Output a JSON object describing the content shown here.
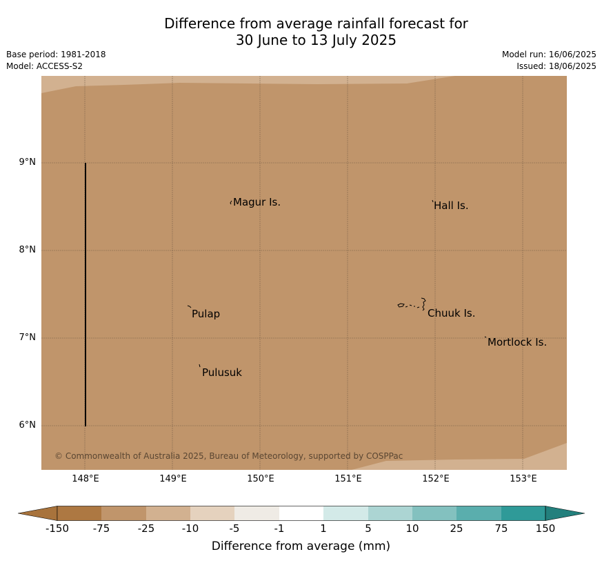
{
  "title_line1": "Difference from average rainfall forecast for",
  "title_line2": "30 June to 13 July 2025",
  "base_period": "Base period: 1981-2018",
  "model": "Model: ACCESS-S2",
  "model_run": "Model run: 16/06/2025",
  "issued": "Issued: 18/06/2025",
  "map": {
    "lon_labels": [
      "148°E",
      "149°E",
      "150°E",
      "151°E",
      "152°E",
      "153°E"
    ],
    "lat_labels": [
      "9°N",
      "8°N",
      "7°N",
      "6°N"
    ],
    "places": [
      {
        "name": "Magur Is."
      },
      {
        "name": "Hall Is."
      },
      {
        "name": "Pulap"
      },
      {
        "name": "Chuuk Is."
      },
      {
        "name": "Mortlock Is."
      },
      {
        "name": "Pulusuk"
      }
    ],
    "copyright": "© Commonwealth of Australia 2025, Bureau of Meteorology, supported by COSPPac",
    "colors": {
      "main_fill": "#c0956b",
      "light_fill": "#d2b190"
    }
  },
  "colorbar": {
    "ticks": [
      "-150",
      "-75",
      "-25",
      "-10",
      "-5",
      "-1",
      "1",
      "5",
      "10",
      "25",
      "75",
      "150"
    ],
    "colors": [
      "#a8733c",
      "#ad7842",
      "#c0956b",
      "#d2b190",
      "#e5d2be",
      "#efebe5",
      "#ffffff",
      "#d3eae8",
      "#acd5d3",
      "#83c1bf",
      "#5aaead",
      "#2f9a98",
      "#23807d"
    ],
    "label": "Difference from average (mm)"
  }
}
